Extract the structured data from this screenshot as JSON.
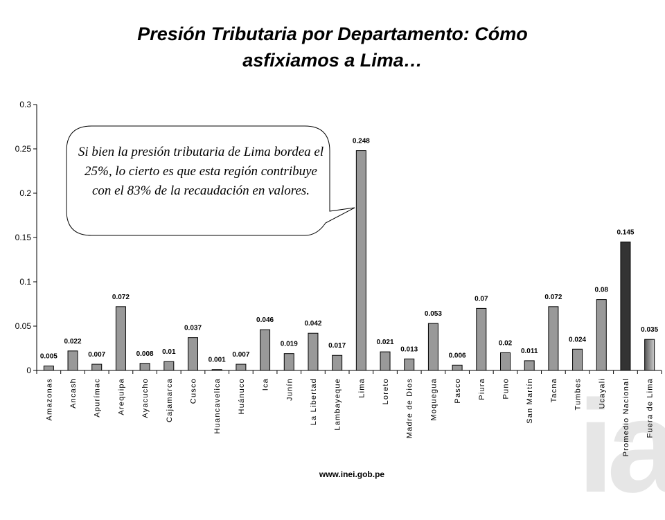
{
  "title_lines": [
    "Presión Tributaria por Departamento: Cómo",
    "asfixiamos a Lima…"
  ],
  "callout": "Si bien la presión tributaria de Lima bordea el 25%, lo cierto es que esta región contribuye con el 83% de la recaudación en valores.",
  "source": "www.inei.gob.pe",
  "watermark": "ia",
  "colors": {
    "bar": "#999999",
    "bar_highlight": "#333333",
    "bar_gradient_start": "#555555",
    "bar_gradient_end": "#cccccc"
  },
  "chart_data": {
    "type": "bar",
    "title": "Presión Tributaria por Departamento: Cómo asfixiamos a Lima…",
    "ylim": [
      0,
      0.3
    ],
    "yticks": [
      "0",
      "0.05",
      "0.1",
      "0.15",
      "0.2",
      "0.25",
      "0.3"
    ],
    "grid": false,
    "categories": [
      "Amazonas",
      "Ancash",
      "Apurímac",
      "Arequipa",
      "Ayacucho",
      "Cajamarca",
      "Cusco",
      "Huancavelica",
      "Huánuco",
      "Ica",
      "Junín",
      "La Libertad",
      "Lambayeque",
      "Lima",
      "Loreto",
      "Madre de Dios",
      "Moquegua",
      "Pasco",
      "Piura",
      "Puno",
      "San Martín",
      "Tacna",
      "Tumbes",
      "Ucayali",
      "Promedio Nacional",
      "Fuera de Lima"
    ],
    "values": [
      0.005,
      0.022,
      0.007,
      0.072,
      0.008,
      0.01,
      0.037,
      0.001,
      0.007,
      0.046,
      0.019,
      0.042,
      0.017,
      0.248,
      0.021,
      0.013,
      0.053,
      0.006,
      0.07,
      0.02,
      0.011,
      0.072,
      0.024,
      0.08,
      0.145,
      0.035
    ],
    "value_labels": [
      "0.005",
      "0.022",
      "0.007",
      "0.072",
      "0.008",
      "0.01",
      "0.037",
      "0.001",
      "0.007",
      "0.046",
      "0.019",
      "0.042",
      "0.017",
      "0.248",
      "0.021",
      "0.013",
      "0.053",
      "0.006",
      "0.07",
      "0.02",
      "0.011",
      "0.072",
      "0.024",
      "0.08",
      "0.145",
      "0.035"
    ],
    "highlight": {
      "Promedio Nacional": "dark",
      "Fuera de Lima": "gradient"
    }
  }
}
